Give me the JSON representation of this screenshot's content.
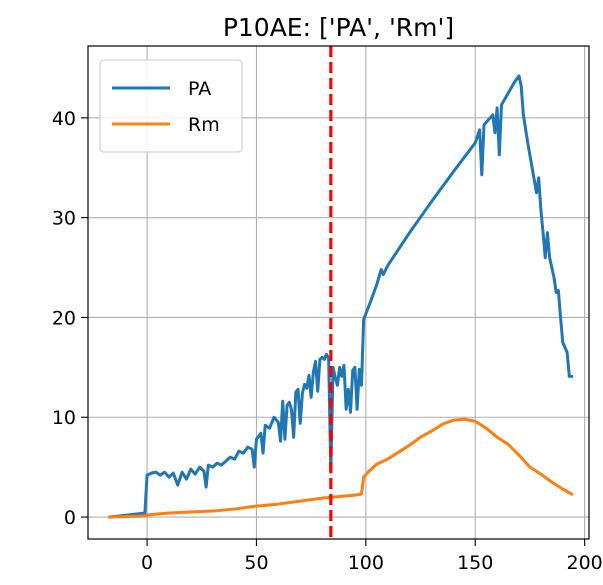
{
  "chart_data": {
    "type": "line",
    "title": "P10AE: ['PA', 'Rm']",
    "xlabel": "",
    "ylabel": "",
    "xlim": [
      -27,
      202
    ],
    "ylim": [
      -2.2,
      47.2
    ],
    "xticks": [
      0,
      50,
      100,
      150,
      200
    ],
    "yticks": [
      0,
      10,
      20,
      30,
      40
    ],
    "x_tick_labels": [
      "0",
      "50",
      "100",
      "150",
      "200"
    ],
    "y_tick_labels": [
      "0",
      "10",
      "20",
      "30",
      "40"
    ],
    "grid": true,
    "legend_position": "upper left",
    "vline": {
      "x": 84,
      "color": "#ff0000",
      "style": "dashed"
    },
    "series": [
      {
        "name": "PA",
        "color": "#1f77b4",
        "points": [
          [
            -17,
            0
          ],
          [
            -1,
            0.4
          ],
          [
            0,
            4.2
          ],
          [
            2,
            4.4
          ],
          [
            4,
            4.5
          ],
          [
            6,
            4.2
          ],
          [
            8,
            4.5
          ],
          [
            10,
            4.0
          ],
          [
            12,
            4.4
          ],
          [
            14,
            3.2
          ],
          [
            16,
            4.5
          ],
          [
            18,
            3.8
          ],
          [
            20,
            4.8
          ],
          [
            22,
            4.3
          ],
          [
            24,
            5.0
          ],
          [
            26,
            4.6
          ],
          [
            27,
            3.0
          ],
          [
            28,
            5.2
          ],
          [
            30,
            5.0
          ],
          [
            32,
            5.4
          ],
          [
            34,
            5.2
          ],
          [
            36,
            5.6
          ],
          [
            38,
            6.0
          ],
          [
            40,
            5.8
          ],
          [
            42,
            6.6
          ],
          [
            44,
            6.4
          ],
          [
            46,
            7.0
          ],
          [
            48,
            6.8
          ],
          [
            49,
            5.0
          ],
          [
            50,
            7.8
          ],
          [
            52,
            8.4
          ],
          [
            53,
            6.4
          ],
          [
            54,
            9.2
          ],
          [
            56,
            8.9
          ],
          [
            58,
            10.0
          ],
          [
            60,
            9.5
          ],
          [
            61,
            7.6
          ],
          [
            62,
            11.6
          ],
          [
            63,
            7.8
          ],
          [
            64,
            11.2
          ],
          [
            65,
            11.5
          ],
          [
            66,
            10.8
          ],
          [
            67,
            8.0
          ],
          [
            68,
            12.5
          ],
          [
            69,
            12.8
          ],
          [
            70,
            9.4
          ],
          [
            71,
            12.4
          ],
          [
            72,
            13.3
          ],
          [
            73,
            12.9
          ],
          [
            74,
            14.2
          ],
          [
            75,
            12.0
          ],
          [
            76,
            14.5
          ],
          [
            77,
            15.6
          ],
          [
            78,
            12.6
          ],
          [
            79,
            15.8
          ],
          [
            80,
            16.0
          ],
          [
            81,
            15.8
          ],
          [
            82,
            16.3
          ],
          [
            83,
            15.9
          ],
          [
            84,
            4.5
          ],
          [
            85,
            15.0
          ],
          [
            86,
            14.0
          ],
          [
            87,
            13.2
          ],
          [
            88,
            15.0
          ],
          [
            89,
            14.1
          ],
          [
            90,
            15.2
          ],
          [
            91,
            10.8
          ],
          [
            92,
            12.8
          ],
          [
            93,
            10.5
          ],
          [
            94,
            14.7
          ],
          [
            95,
            15.0
          ],
          [
            96,
            10.8
          ],
          [
            97,
            14.8
          ],
          [
            98,
            13.2
          ],
          [
            99,
            19.8
          ],
          [
            102,
            21.5
          ],
          [
            105,
            23.3
          ],
          [
            107,
            24.8
          ],
          [
            108,
            24.3
          ],
          [
            110,
            25.2
          ],
          [
            120,
            28.5
          ],
          [
            130,
            31.6
          ],
          [
            140,
            34.6
          ],
          [
            150,
            37.5
          ],
          [
            152,
            38.8
          ],
          [
            153,
            34.3
          ],
          [
            154,
            39.3
          ],
          [
            158,
            40.3
          ],
          [
            159,
            38.5
          ],
          [
            160,
            41.0
          ],
          [
            161,
            36.3
          ],
          [
            162,
            41.3
          ],
          [
            168,
            43.6
          ],
          [
            170,
            44.2
          ],
          [
            171,
            43.2
          ],
          [
            172,
            40.3
          ],
          [
            174,
            37.5
          ],
          [
            176,
            35.0
          ],
          [
            178,
            32.5
          ],
          [
            179,
            34.0
          ],
          [
            180,
            30.8
          ],
          [
            181,
            28.5
          ],
          [
            182,
            26.0
          ],
          [
            183,
            28.5
          ],
          [
            184,
            26.0
          ],
          [
            186,
            24.0
          ],
          [
            187,
            22.5
          ],
          [
            188,
            22.7
          ],
          [
            189,
            20.0
          ],
          [
            190,
            17.5
          ],
          [
            192,
            16.5
          ],
          [
            193,
            14.1
          ],
          [
            194,
            14.1
          ]
        ]
      },
      {
        "name": "Rm",
        "color": "#ff7f0e",
        "points": [
          [
            -17,
            0
          ],
          [
            -1,
            0.1
          ],
          [
            0,
            0.2
          ],
          [
            10,
            0.4
          ],
          [
            20,
            0.5
          ],
          [
            30,
            0.6
          ],
          [
            40,
            0.8
          ],
          [
            50,
            1.1
          ],
          [
            60,
            1.3
          ],
          [
            70,
            1.6
          ],
          [
            80,
            1.9
          ],
          [
            85,
            2.0
          ],
          [
            90,
            2.1
          ],
          [
            95,
            2.2
          ],
          [
            98,
            2.3
          ],
          [
            99,
            4.0
          ],
          [
            101,
            4.5
          ],
          [
            105,
            5.3
          ],
          [
            110,
            5.8
          ],
          [
            115,
            6.5
          ],
          [
            120,
            7.2
          ],
          [
            125,
            8.0
          ],
          [
            130,
            8.6
          ],
          [
            135,
            9.3
          ],
          [
            140,
            9.7
          ],
          [
            145,
            9.8
          ],
          [
            150,
            9.6
          ],
          [
            155,
            8.9
          ],
          [
            160,
            8.0
          ],
          [
            165,
            7.3
          ],
          [
            170,
            6.2
          ],
          [
            175,
            5.0
          ],
          [
            180,
            4.3
          ],
          [
            185,
            3.5
          ],
          [
            190,
            2.8
          ],
          [
            194,
            2.3
          ]
        ]
      }
    ]
  }
}
